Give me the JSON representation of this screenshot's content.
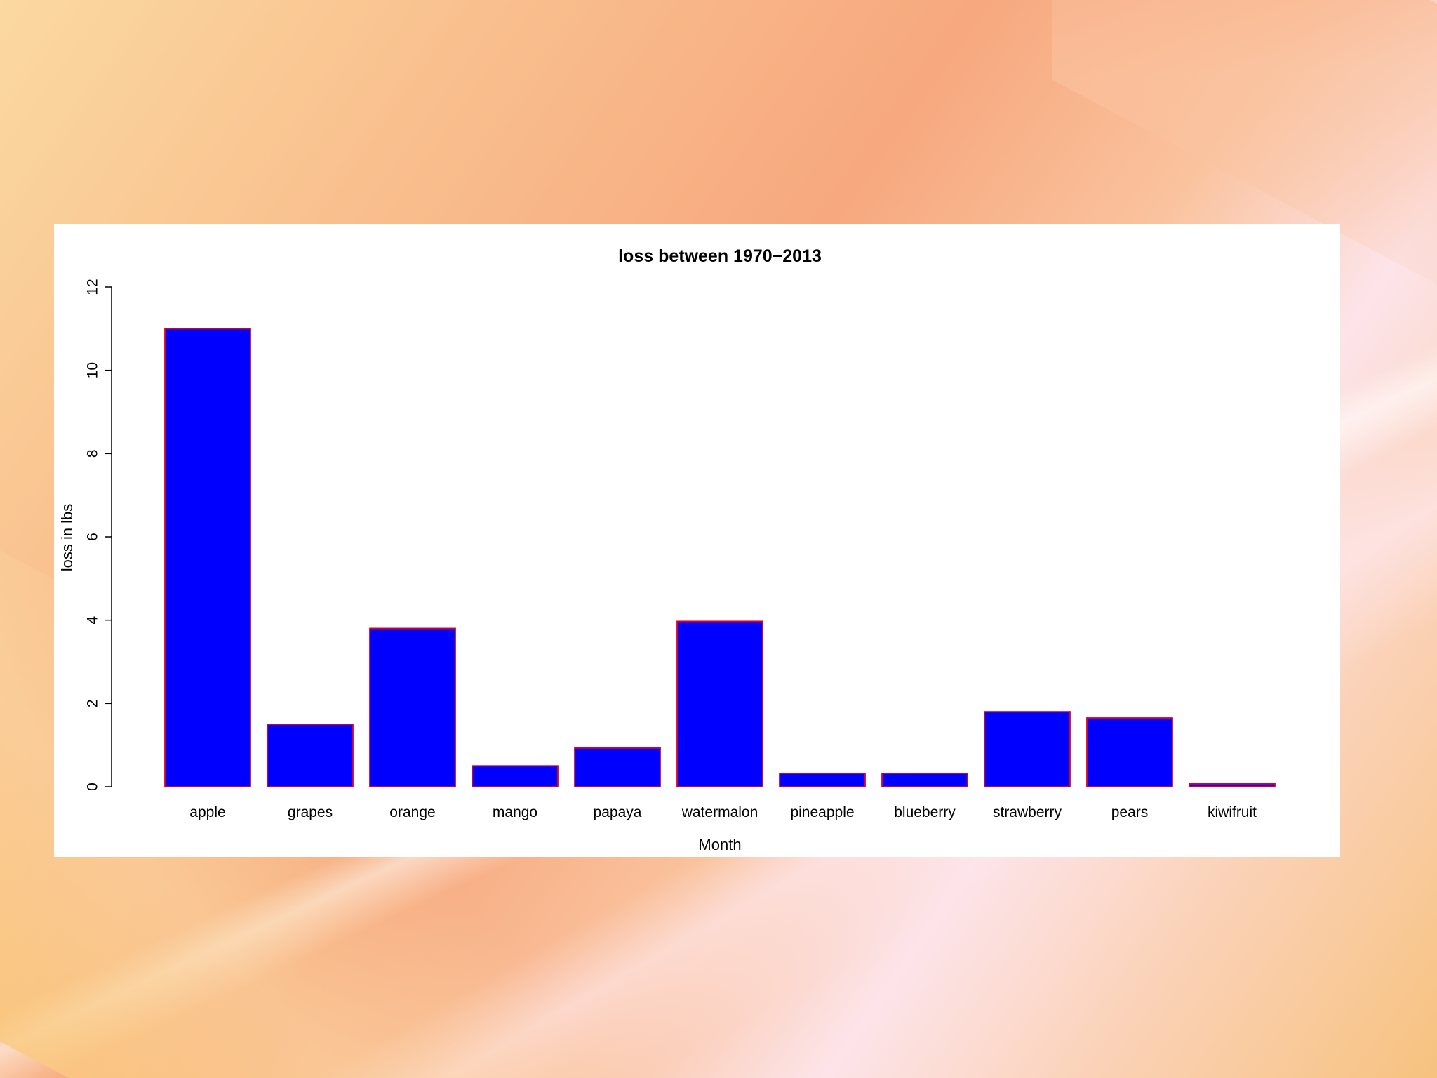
{
  "colors": {
    "bar_fill": "#0000ff",
    "bar_stroke": "#cc0033",
    "axis": "#000000",
    "panel": "#ffffff"
  },
  "chart_data": {
    "type": "bar",
    "title": "loss between 1970−2013",
    "xlabel": "Month",
    "ylabel": "loss in lbs",
    "categories": [
      "apple",
      "grapes",
      "orange",
      "mango",
      "papaya",
      "watermalon",
      "pineapple",
      "blueberry",
      "strawberry",
      "pears",
      "kiwifruit"
    ],
    "values": [
      11.0,
      1.5,
      3.8,
      0.5,
      0.93,
      3.97,
      0.32,
      0.32,
      1.8,
      1.65,
      0.07
    ],
    "ylim": [
      0,
      12
    ],
    "yticks": [
      0,
      2,
      4,
      6,
      8,
      10,
      12
    ],
    "grid": false,
    "legend": "none"
  }
}
